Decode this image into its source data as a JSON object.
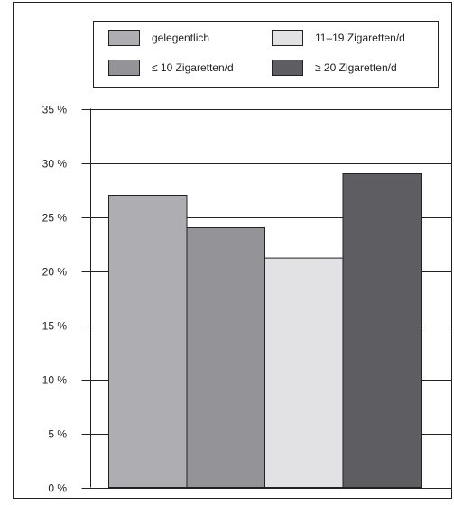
{
  "chart_data": {
    "type": "bar",
    "categories": [
      "gelegentlich",
      "≤ 10 Zigaretten/d",
      "11–19 Zigaretten/d",
      "≥ 20 Zigaretten/d"
    ],
    "values": [
      27,
      24,
      21.2,
      29
    ],
    "unit": "%",
    "ylim": [
      0,
      35
    ],
    "yticks": [
      0,
      5,
      10,
      15,
      20,
      25,
      30,
      35
    ],
    "ytick_labels": [
      "0 %",
      "5 %",
      "10 %",
      "15 %",
      "20 %",
      "25 %",
      "30 %",
      "35 %"
    ],
    "grid": "horizontal",
    "legend_position": "top",
    "colors": [
      "#aeaeb2",
      "#949498",
      "#e2e2e4",
      "#5e5e62"
    ],
    "legend": [
      {
        "label": "gelegentlich",
        "color": "#aeaeb2"
      },
      {
        "label": "11–19 Zigaretten/d",
        "color": "#e2e2e4"
      },
      {
        "label": "≤ 10 Zigaretten/d",
        "color": "#949498"
      },
      {
        "label": "≥ 20 Zigaretten/d",
        "color": "#5e5e62"
      }
    ]
  }
}
